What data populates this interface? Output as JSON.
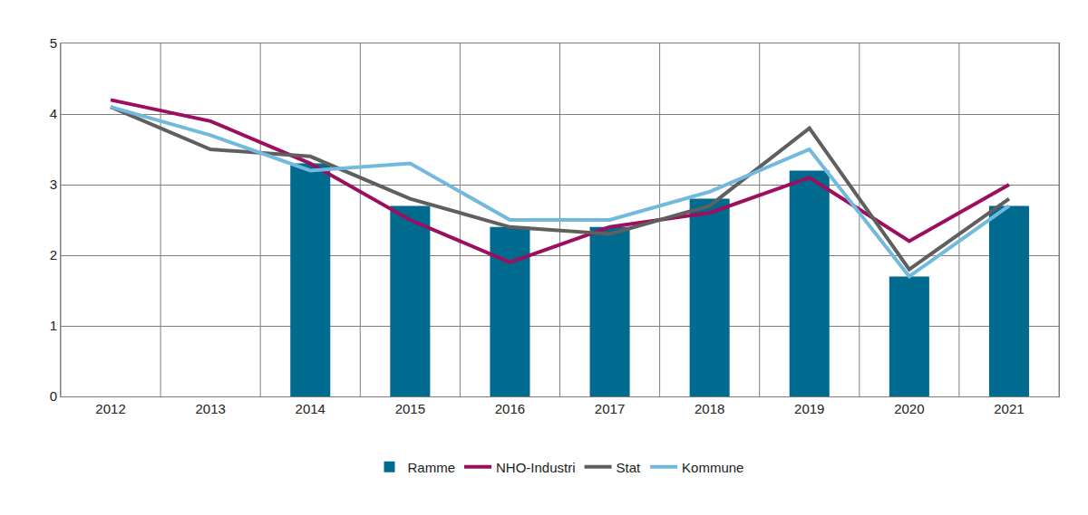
{
  "chart_data": {
    "type": "bar",
    "categories": [
      "2012",
      "2013",
      "2014",
      "2015",
      "2016",
      "2017",
      "2018",
      "2019",
      "2020",
      "2021"
    ],
    "series": [
      {
        "name": "Ramme",
        "type": "bar",
        "color": "#006a8f",
        "values": [
          null,
          null,
          3.3,
          2.7,
          2.4,
          2.4,
          2.8,
          3.2,
          1.7,
          2.7
        ]
      },
      {
        "name": "NHO-Industri",
        "type": "line",
        "color": "#9c0f5f",
        "values": [
          4.2,
          3.9,
          3.3,
          2.5,
          1.9,
          2.4,
          2.6,
          3.1,
          2.2,
          3.0
        ]
      },
      {
        "name": "Stat",
        "type": "line",
        "color": "#5f5f5f",
        "values": [
          4.1,
          3.5,
          3.4,
          2.8,
          2.4,
          2.3,
          2.7,
          3.8,
          1.8,
          2.8
        ]
      },
      {
        "name": "Kommune",
        "type": "line",
        "color": "#72b9de",
        "values": [
          4.1,
          3.7,
          3.2,
          3.3,
          2.5,
          2.5,
          2.9,
          3.5,
          1.7,
          2.7
        ]
      }
    ],
    "ylim": [
      0,
      5
    ],
    "yticks": [
      0,
      1,
      2,
      3,
      4,
      5
    ],
    "grid": true,
    "legend": "bottom"
  }
}
